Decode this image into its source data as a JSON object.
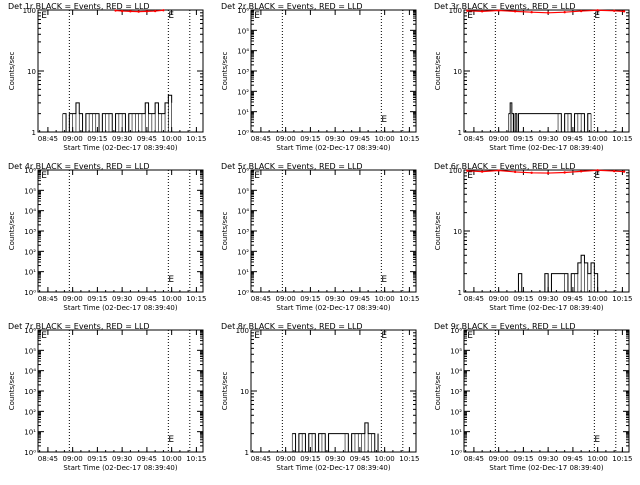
{
  "xlabel": "Start Time (02-Dec-17 08:39:40)",
  "ylabel": "Counts/sec",
  "x_ticks": [
    "08:45",
    "09:00",
    "09:15",
    "09:30",
    "09:45",
    "10:00",
    "10:15"
  ],
  "colors": {
    "events": "#000000",
    "lld": "#ff0000"
  },
  "chart_data": [
    {
      "type": "line",
      "title": "Det 1r BLACK = Events, RED = LLD",
      "scale": "log",
      "ylim": [
        1,
        100
      ],
      "y_ticks": [
        "1",
        "10",
        "100"
      ],
      "events": {
        "x": [
          "08:54",
          "08:56",
          "08:58",
          "09:00",
          "09:02",
          "09:04",
          "09:06",
          "09:08",
          "09:10",
          "09:12",
          "09:14",
          "09:16",
          "09:18",
          "09:20",
          "09:22",
          "09:24",
          "09:26",
          "09:28",
          "09:30",
          "09:32",
          "09:34",
          "09:36",
          "09:38",
          "09:40",
          "09:42",
          "09:44",
          "09:46",
          "09:48",
          "09:50",
          "09:52",
          "09:54",
          "09:56",
          "09:58",
          "10:00"
        ],
        "y": [
          2,
          1,
          2,
          2,
          3,
          2,
          1,
          2,
          2,
          2,
          2,
          1,
          2,
          2,
          2,
          1,
          2,
          2,
          2,
          1,
          2,
          2,
          2,
          2,
          2,
          3,
          2,
          2,
          3,
          2,
          2,
          3,
          4,
          3
        ]
      },
      "lld": {
        "x": [
          "09:26",
          "09:30",
          "09:35",
          "09:40",
          "09:45",
          "09:50",
          "09:55"
        ],
        "y": [
          98,
          96,
          95,
          94,
          95,
          96,
          99
        ]
      },
      "dotted_lines": [
        "08:58",
        "09:58",
        "10:11"
      ],
      "E_marker": {
        "x": "08:41",
        "label": "E"
      },
      "F_marker": {
        "x": "09:58",
        "label": "E"
      }
    },
    {
      "type": "line",
      "title": "Det 2r BLACK = Events, RED = LLD",
      "scale": "log",
      "ylim": [
        1,
        1000000
      ],
      "y_ticks": [
        "10⁰",
        "10¹",
        "10²",
        "10³",
        "10⁴",
        "10⁵",
        "10⁶"
      ],
      "events": {
        "x": [],
        "y": []
      },
      "lld": {
        "x": [],
        "y": []
      },
      "dotted_lines": [
        "08:58",
        "09:58",
        "10:11"
      ],
      "E_marker": {
        "x": "08:41",
        "label": "E"
      },
      "F_marker": {
        "x": "09:58",
        "label": "E"
      }
    },
    {
      "type": "line",
      "title": "Det 3r BLACK = Events, RED = LLD",
      "scale": "log",
      "ylim": [
        1,
        100
      ],
      "y_ticks": [
        "1",
        "10",
        "100"
      ],
      "events": {
        "x": [
          "09:06",
          "09:07",
          "09:08",
          "09:09",
          "09:10",
          "09:11",
          "09:12",
          "09:36",
          "09:38",
          "09:40",
          "09:42",
          "09:44",
          "09:46",
          "09:48",
          "09:50",
          "09:52",
          "09:54",
          "09:56"
        ],
        "y": [
          2,
          3,
          2,
          1,
          2,
          1,
          2,
          2,
          1,
          2,
          2,
          1,
          2,
          2,
          2,
          1,
          2,
          2
        ]
      },
      "lld": {
        "x": [
          "08:41",
          "08:50",
          "09:00",
          "09:10",
          "09:20",
          "09:30",
          "09:40",
          "09:50",
          "10:00",
          "10:10",
          "10:16"
        ],
        "y": [
          97,
          95,
          98,
          95,
          92,
          90,
          92,
          96,
          99,
          97,
          95
        ]
      },
      "dotted_lines": [
        "08:58",
        "09:58",
        "10:11"
      ],
      "E_marker": {
        "x": "08:41",
        "label": "E"
      },
      "F_marker": {
        "x": "09:58",
        "label": "E"
      }
    },
    {
      "type": "line",
      "title": "Det 4r BLACK = Events, RED = LLD",
      "scale": "log",
      "ylim": [
        1,
        1000000
      ],
      "y_ticks": [
        "10⁰",
        "10¹",
        "10²",
        "10³",
        "10⁴",
        "10⁵",
        "10⁶"
      ],
      "events": {
        "x": [],
        "y": []
      },
      "lld": {
        "x": [],
        "y": []
      },
      "dotted_lines": [
        "08:58",
        "09:58",
        "10:11"
      ],
      "E_marker": {
        "x": "08:41",
        "label": "E"
      },
      "F_marker": {
        "x": "09:58",
        "label": "E"
      }
    },
    {
      "type": "line",
      "title": "Det 5r BLACK = Events, RED = LLD",
      "scale": "log",
      "ylim": [
        1,
        1000000
      ],
      "y_ticks": [
        "10⁰",
        "10¹",
        "10²",
        "10³",
        "10⁴",
        "10⁵",
        "10⁶"
      ],
      "events": {
        "x": [],
        "y": []
      },
      "lld": {
        "x": [],
        "y": []
      },
      "dotted_lines": [
        "08:58",
        "09:58",
        "10:11"
      ],
      "E_marker": {
        "x": "08:41",
        "label": "E"
      },
      "F_marker": {
        "x": "09:58",
        "label": "E"
      }
    },
    {
      "type": "line",
      "title": "Det 6r BLACK = Events, RED = LLD",
      "scale": "log",
      "ylim": [
        1,
        100
      ],
      "y_ticks": [
        "1",
        "10",
        "100"
      ],
      "events": {
        "x": [
          "09:10",
          "09:12",
          "09:14",
          "09:28",
          "09:30",
          "09:32",
          "09:40",
          "09:42",
          "09:44",
          "09:46",
          "09:48",
          "09:50",
          "09:52",
          "09:54",
          "09:56",
          "09:58",
          "10:00"
        ],
        "y": [
          1,
          2,
          1,
          2,
          1,
          2,
          2,
          1,
          2,
          2,
          3,
          4,
          3,
          2,
          3,
          2,
          1
        ]
      },
      "lld": {
        "x": [
          "08:41",
          "08:50",
          "09:00",
          "09:10",
          "09:20",
          "09:30",
          "09:40",
          "09:50",
          "10:00",
          "10:10",
          "10:16"
        ],
        "y": [
          97,
          94,
          98,
          93,
          90,
          89,
          91,
          95,
          99,
          96,
          94
        ]
      },
      "dotted_lines": [
        "08:58",
        "09:58",
        "10:11"
      ],
      "E_marker": {
        "x": "08:41",
        "label": "E"
      },
      "F_marker": {
        "x": "09:58",
        "label": "E"
      }
    },
    {
      "type": "line",
      "title": "Det 7r BLACK = Events, RED = LLD",
      "scale": "log",
      "ylim": [
        1,
        1000000
      ],
      "y_ticks": [
        "10⁰",
        "10¹",
        "10²",
        "10³",
        "10⁴",
        "10⁵",
        "10⁶"
      ],
      "events": {
        "x": [],
        "y": []
      },
      "lld": {
        "x": [],
        "y": []
      },
      "dotted_lines": [
        "08:58",
        "09:58",
        "10:11"
      ],
      "E_marker": {
        "x": "08:41",
        "label": "E"
      },
      "F_marker": {
        "x": "09:58",
        "label": "E"
      }
    },
    {
      "type": "line",
      "title": "Det 8r BLACK = Events, RED = LLD",
      "scale": "log",
      "ylim": [
        1,
        100
      ],
      "y_ticks": [
        "1",
        "10",
        "100"
      ],
      "events": {
        "x": [
          "09:04",
          "09:06",
          "09:08",
          "09:10",
          "09:12",
          "09:14",
          "09:16",
          "09:18",
          "09:20",
          "09:22",
          "09:24",
          "09:26",
          "09:36",
          "09:38",
          "09:40",
          "09:42",
          "09:44",
          "09:46",
          "09:48",
          "09:50",
          "09:52",
          "09:54",
          "09:56"
        ],
        "y": [
          2,
          1,
          2,
          2,
          1,
          2,
          2,
          1,
          2,
          2,
          1,
          2,
          2,
          1,
          2,
          2,
          2,
          2,
          3,
          2,
          2,
          1,
          2
        ]
      },
      "lld": {
        "x": [],
        "y": []
      },
      "dotted_lines": [
        "08:58",
        "09:58",
        "10:11"
      ],
      "E_marker": {
        "x": "08:41",
        "label": "E"
      },
      "F_marker": {
        "x": "09:58",
        "label": "E"
      }
    },
    {
      "type": "line",
      "title": "Det 9r BLACK = Events, RED = LLD",
      "scale": "log",
      "ylim": [
        1,
        1000000
      ],
      "y_ticks": [
        "10⁰",
        "10¹",
        "10²",
        "10³",
        "10⁴",
        "10⁵",
        "10⁶"
      ],
      "events": {
        "x": [],
        "y": []
      },
      "lld": {
        "x": [],
        "y": []
      },
      "dotted_lines": [
        "08:58",
        "09:58",
        "10:11"
      ],
      "E_marker": {
        "x": "08:41",
        "label": "E"
      },
      "F_marker": {
        "x": "09:58",
        "label": "E"
      }
    }
  ]
}
